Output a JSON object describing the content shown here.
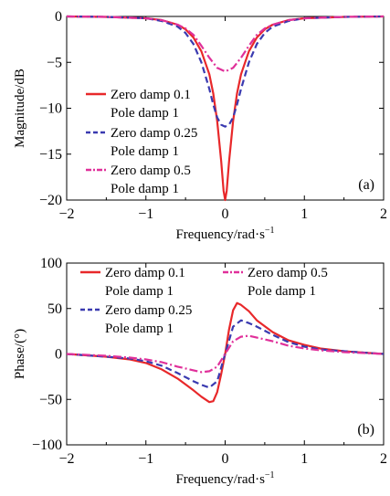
{
  "chart_data": [
    {
      "type": "line",
      "panel_label": "(a)",
      "xlabel": "Frequency/rad·s",
      "xlabel_sup": "−1",
      "ylabel": "Magnitude/dB",
      "xlim": [
        -2,
        2
      ],
      "ylim": [
        -20,
        0
      ],
      "xticks": [
        -2,
        -1,
        0,
        1,
        2
      ],
      "xtick_labels": [
        "−2",
        "−1",
        "0",
        "1",
        "2"
      ],
      "yticks": [
        0,
        -5,
        -10,
        -15,
        -20
      ],
      "ytick_labels": [
        "0",
        "−5",
        "−10",
        "−15",
        "−20"
      ],
      "legend": "left",
      "series": [
        {
          "name": "Zero damp 0.1",
          "name2": "Pole damp 1",
          "color": "#e8282a",
          "dash": "",
          "x": [
            -2,
            -1.5,
            -1,
            -0.8,
            -0.6,
            -0.5,
            -0.4,
            -0.3,
            -0.2,
            -0.15,
            -0.1,
            -0.05,
            -0.02,
            0,
            0.02,
            0.05,
            0.1,
            0.15,
            0.2,
            0.3,
            0.4,
            0.5,
            0.6,
            0.8,
            1,
            1.5,
            2
          ],
          "y": [
            0,
            -0.05,
            -0.2,
            -0.4,
            -0.9,
            -1.4,
            -2.3,
            -3.8,
            -6.3,
            -8.4,
            -11.4,
            -15.8,
            -19.0,
            -20.0,
            -19.0,
            -15.8,
            -11.4,
            -8.4,
            -6.3,
            -3.8,
            -2.3,
            -1.4,
            -0.9,
            -0.4,
            -0.2,
            -0.05,
            0
          ]
        },
        {
          "name": "Zero damp 0.25",
          "name2": "Pole damp 1",
          "color": "#3a3ab0",
          "dash": "7,4",
          "x": [
            -2,
            -1.5,
            -1,
            -0.8,
            -0.6,
            -0.5,
            -0.4,
            -0.3,
            -0.2,
            -0.15,
            -0.1,
            -0.05,
            0,
            0.05,
            0.1,
            0.15,
            0.2,
            0.3,
            0.4,
            0.5,
            0.6,
            0.8,
            1,
            1.5,
            2
          ],
          "y": [
            0,
            -0.05,
            -0.2,
            -0.5,
            -1.1,
            -1.8,
            -3.0,
            -5.0,
            -7.9,
            -9.6,
            -11.0,
            -11.8,
            -12.0,
            -11.8,
            -11.0,
            -9.6,
            -7.9,
            -5.0,
            -3.0,
            -1.8,
            -1.1,
            -0.5,
            -0.2,
            -0.05,
            0
          ]
        },
        {
          "name": "Zero damp 0.5",
          "name2": "Pole damp 1",
          "color": "#e0309a",
          "dash": "9,3,2,3",
          "x": [
            -2,
            -1.5,
            -1,
            -0.8,
            -0.6,
            -0.5,
            -0.4,
            -0.3,
            -0.2,
            -0.1,
            0,
            0.1,
            0.2,
            0.3,
            0.4,
            0.5,
            0.6,
            0.8,
            1,
            1.5,
            2
          ],
          "y": [
            0,
            -0.05,
            -0.2,
            -0.4,
            -0.9,
            -1.3,
            -2.0,
            -3.2,
            -4.5,
            -5.6,
            -6.0,
            -5.6,
            -4.5,
            -3.2,
            -2.0,
            -1.3,
            -0.9,
            -0.4,
            -0.2,
            -0.05,
            0
          ]
        }
      ]
    },
    {
      "type": "line",
      "panel_label": "(b)",
      "xlabel": "Frequency/rad·s",
      "xlabel_sup": "−1",
      "ylabel": "Phase/(°)",
      "xlim": [
        -2,
        2
      ],
      "ylim": [
        -100,
        100
      ],
      "xticks": [
        -2,
        -1,
        0,
        1,
        2
      ],
      "xtick_labels": [
        "−2",
        "−1",
        "0",
        "1",
        "2"
      ],
      "yticks": [
        100,
        50,
        0,
        -50,
        -100
      ],
      "ytick_labels": [
        "100",
        "50",
        "0",
        "−50",
        "−100"
      ],
      "legend": "top",
      "series": [
        {
          "name": "Zero damp 0.1",
          "name2": "Pole damp 1",
          "color": "#e8282a",
          "dash": "",
          "x": [
            -2,
            -1.5,
            -1.2,
            -1,
            -0.8,
            -0.6,
            -0.4,
            -0.3,
            -0.2,
            -0.15,
            -0.1,
            -0.05,
            0,
            0.05,
            0.1,
            0.15,
            0.2,
            0.3,
            0.4,
            0.6,
            0.8,
            1,
            1.2,
            1.5,
            2
          ],
          "y": [
            0,
            -3,
            -6,
            -10,
            -17,
            -27,
            -40,
            -47,
            -53,
            -52,
            -42,
            -22,
            0,
            27,
            48,
            56,
            54,
            47,
            37,
            24,
            15,
            10,
            6,
            3,
            0
          ]
        },
        {
          "name": "Zero damp 0.25",
          "name2": "Pole damp 1",
          "color": "#3a3ab0",
          "dash": "7,4",
          "x": [
            -2,
            -1.5,
            -1.2,
            -1,
            -0.8,
            -0.6,
            -0.4,
            -0.3,
            -0.2,
            -0.1,
            0,
            0.1,
            0.2,
            0.3,
            0.4,
            0.6,
            0.8,
            1,
            1.2,
            1.5,
            2
          ],
          "y": [
            0,
            -3,
            -5,
            -8,
            -13,
            -21,
            -30,
            -34,
            -37,
            -30,
            0,
            30,
            37,
            34,
            30,
            21,
            13,
            8,
            5,
            3,
            0
          ]
        },
        {
          "name": "Zero damp 0.5",
          "name2": "Pole damp 1",
          "color": "#e0309a",
          "dash": "9,3,2,3",
          "x": [
            -2,
            -1.5,
            -1.2,
            -1,
            -0.8,
            -0.6,
            -0.4,
            -0.3,
            -0.2,
            -0.1,
            0,
            0.1,
            0.2,
            0.3,
            0.4,
            0.6,
            0.8,
            1,
            1.2,
            1.5,
            2
          ],
          "y": [
            0,
            -2,
            -4,
            -6,
            -9,
            -14,
            -18,
            -20,
            -19,
            -14,
            0,
            14,
            19,
            20,
            18,
            14,
            9,
            6,
            4,
            2,
            0
          ]
        }
      ]
    }
  ]
}
